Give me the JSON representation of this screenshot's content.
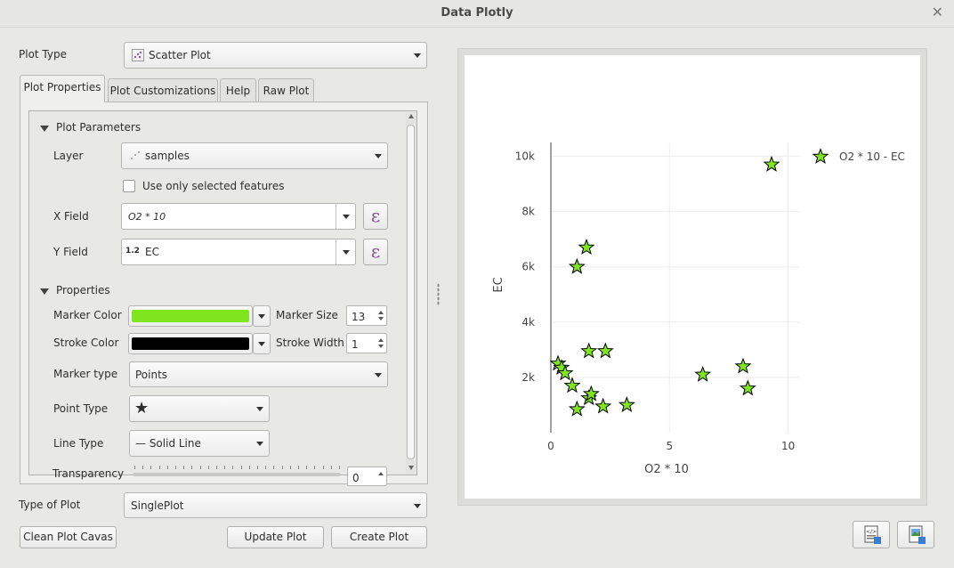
{
  "window": {
    "title": "Data Plotly"
  },
  "plot_type": {
    "label": "Plot Type",
    "value": "Scatter Plot"
  },
  "tabs": [
    {
      "label": "Plot Properties",
      "active": true
    },
    {
      "label": "Plot Customizations",
      "active": false
    },
    {
      "label": "Help",
      "active": false
    },
    {
      "label": "Raw Plot",
      "active": false
    }
  ],
  "plot_parameters": {
    "header": "Plot Parameters",
    "layer_label": "Layer",
    "layer_value": "samples",
    "selected_only_label": "Use only selected features",
    "x_field_label": "X Field",
    "x_field_value": "O2 * 10",
    "y_field_label": "Y Field",
    "y_field_type": "1.2",
    "y_field_value": "EC",
    "expression_button": "ε"
  },
  "properties": {
    "header": "Properties",
    "marker_color_label": "Marker Color",
    "marker_color": "#7ee51e",
    "marker_size_label": "Marker Size",
    "marker_size": "13",
    "stroke_color_label": "Stroke Color",
    "stroke_color": "#000000",
    "stroke_width_label": "Stroke Width",
    "stroke_width": "1",
    "marker_type_label": "Marker type",
    "marker_type": "Points",
    "point_type_label": "Point Type",
    "point_type": "★",
    "line_type_label": "Line Type",
    "line_type": "— Solid Line",
    "transparency_label": "Transparency",
    "transparency_value": "0"
  },
  "type_of_plot": {
    "label": "Type of Plot",
    "value": "SinglePlot"
  },
  "buttons": {
    "clean": "Clean Plot Cavas",
    "update": "Update Plot",
    "create": "Create Plot"
  },
  "chart_data": {
    "type": "scatter",
    "xlabel": "O2 * 10",
    "ylabel": "EC",
    "xlim": [
      0,
      10.5
    ],
    "ylim": [
      0,
      10500
    ],
    "xticks": [
      0,
      5,
      10
    ],
    "yticks": [
      2000,
      4000,
      6000,
      8000,
      10000
    ],
    "ytick_labels": [
      "2k",
      "4k",
      "6k",
      "8k",
      "10k"
    ],
    "grid": true,
    "legend_position": "top-right",
    "marker": "star",
    "marker_color": "#7ee51e",
    "series": [
      {
        "name": "O2 * 10 - EC",
        "points": [
          [
            9.3,
            9700
          ],
          [
            1.5,
            6700
          ],
          [
            1.1,
            6000
          ],
          [
            1.6,
            2950
          ],
          [
            2.3,
            2950
          ],
          [
            0.3,
            2500
          ],
          [
            0.45,
            2350
          ],
          [
            0.6,
            2150
          ],
          [
            0.9,
            1700
          ],
          [
            1.6,
            1250
          ],
          [
            1.7,
            1400
          ],
          [
            1.1,
            850
          ],
          [
            2.2,
            950
          ],
          [
            3.2,
            1000
          ],
          [
            6.4,
            2100
          ],
          [
            8.1,
            2400
          ],
          [
            8.3,
            1600
          ]
        ]
      }
    ]
  }
}
